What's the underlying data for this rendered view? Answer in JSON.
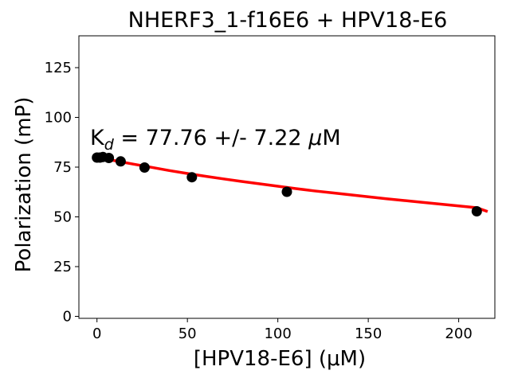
{
  "chart_data": {
    "type": "scatter",
    "title": "NHERF3_1-f16E6 + HPV18-E6",
    "xlabel": "[HPV18-E6] (μM)",
    "ylabel": "Polarization (mP)",
    "xlim": [
      -10,
      220
    ],
    "ylim": [
      -1,
      141
    ],
    "xticks": [
      0,
      50,
      100,
      150,
      200
    ],
    "yticks": [
      0,
      25,
      50,
      75,
      100,
      125
    ],
    "grid": false,
    "annotation": {
      "prefix": "K",
      "subscript": "d",
      "value": " = 77.76 +/- 7.22 ",
      "mu": "μ",
      "unit": "M"
    },
    "series": [
      {
        "kind": "points",
        "color": "#000000",
        "x": [
          0,
          1.64,
          3.28,
          6.56,
          13.1,
          26.3,
          52.5,
          105,
          210
        ],
        "y": [
          79.8,
          79.8,
          80.1,
          79.6,
          77.9,
          74.8,
          69.9,
          62.6,
          52.8
        ]
      },
      {
        "kind": "fit",
        "color": "#ff0000",
        "x": [
          0,
          10,
          20,
          30,
          40,
          50,
          60,
          70,
          80,
          90,
          100,
          110,
          120,
          130,
          140,
          150,
          160,
          170,
          180,
          190,
          200,
          210,
          216
        ],
        "y": [
          80.0,
          78.2,
          76.5,
          74.9,
          73.3,
          71.8,
          70.4,
          69.1,
          67.8,
          66.6,
          65.4,
          64.2,
          63.1,
          62.1,
          61.1,
          60.1,
          59.1,
          58.2,
          57.3,
          56.4,
          55.5,
          54.6,
          52.7
        ]
      }
    ]
  }
}
